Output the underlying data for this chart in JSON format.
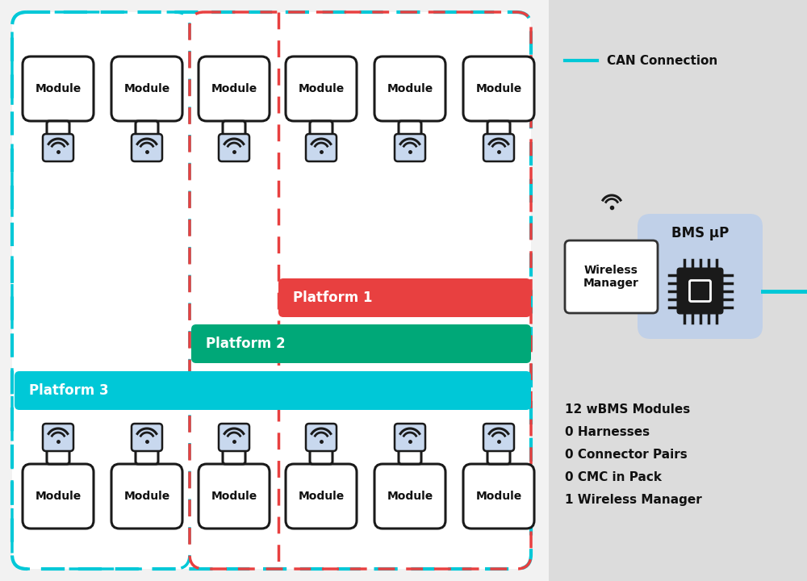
{
  "bg_color": "#f2f2f2",
  "main_bg": "#ffffff",
  "right_panel_bg": "#dcdcdc",
  "teal_color": "#00c8d7",
  "red_dashed_color": "#e84040",
  "platform1_color": "#e84040",
  "platform2_color": "#00a878",
  "platform3_color": "#00c8d7",
  "module_fill": "#ffffff",
  "module_edge": "#1a1a1a",
  "wifi_box_fill": "#c8d8ee",
  "wifi_color": "#1a1a1a",
  "bms_fill": "#c0d0e8",
  "wireless_mgr_fill": "#ffffff",
  "can_line_color": "#00c8d7",
  "text_dark": "#111111",
  "stats_bold": true,
  "stats_lines": [
    "12 wBMS Modules",
    "0 Harnesses",
    "0 Connector Pairs",
    "0 CMC in Pack",
    "1 Wireless Manager"
  ],
  "can_label": "CAN Connection",
  "bms_label": "BMS μP",
  "wireless_label": "Wireless\nManager",
  "figw": 10.0,
  "figh": 7.2,
  "dpi": 100
}
